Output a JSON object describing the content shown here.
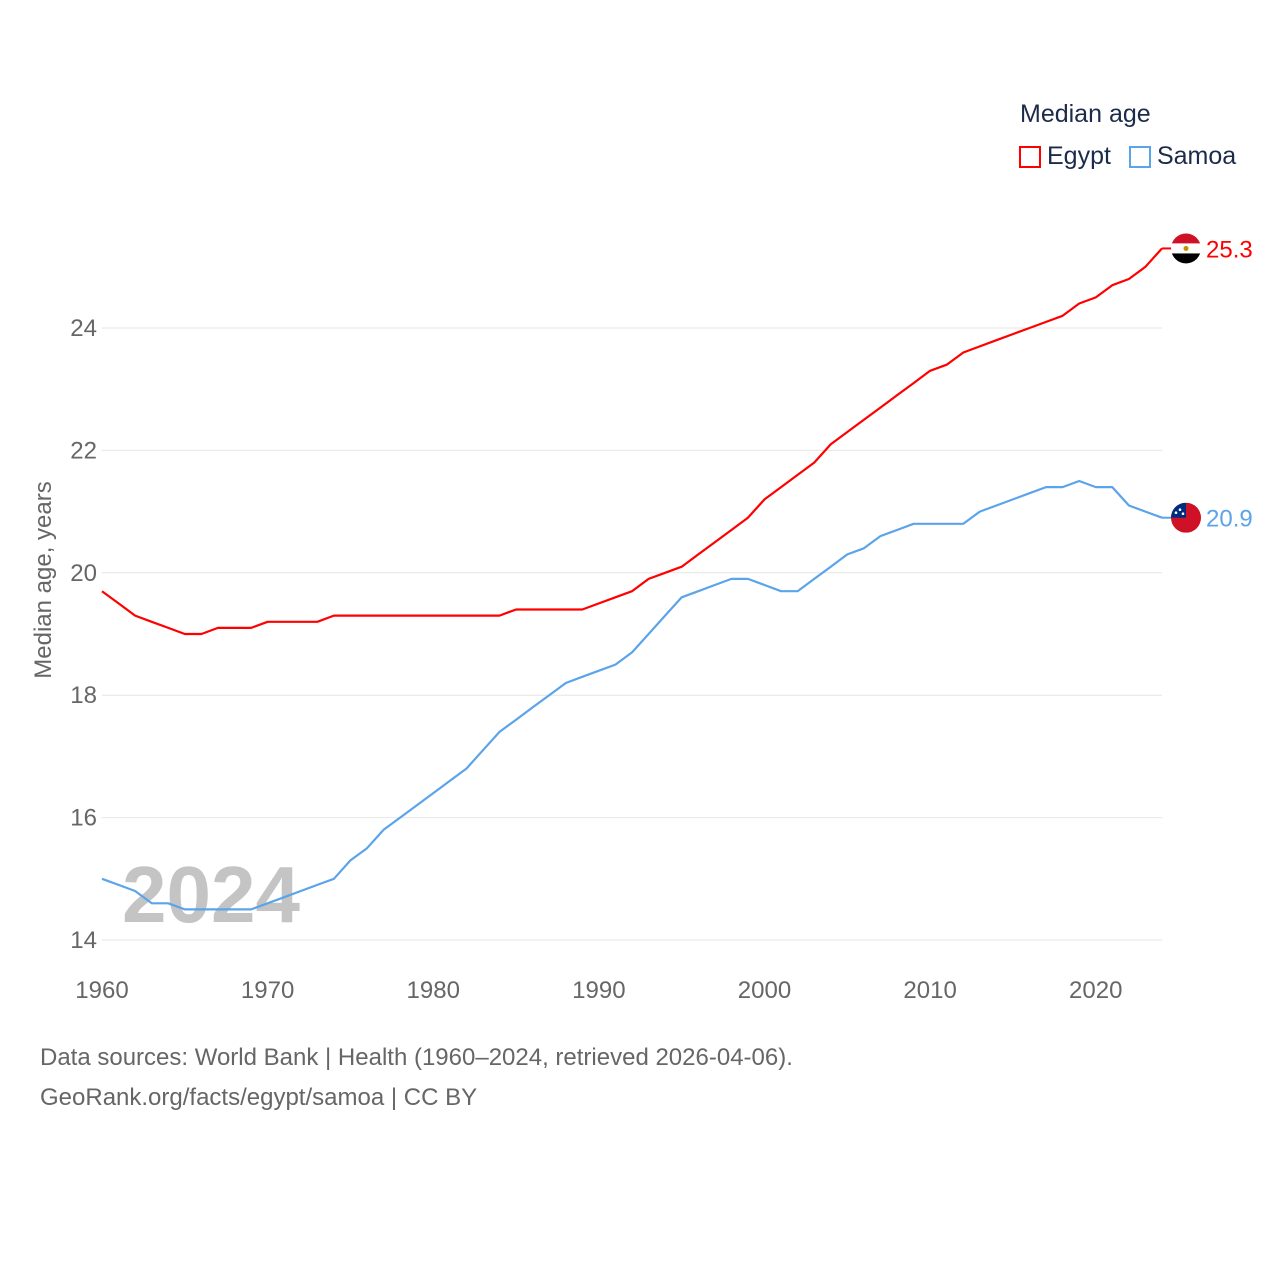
{
  "chart_data": {
    "type": "line",
    "title": "Median age",
    "xlabel": "",
    "ylabel": "Median age, years",
    "xlim": [
      1960,
      2024
    ],
    "ylim": [
      14,
      25.3
    ],
    "yticks": [
      14,
      16,
      18,
      20,
      22,
      24
    ],
    "xticks": [
      1960,
      1970,
      1980,
      1990,
      2000,
      2010,
      2020
    ],
    "grid": true,
    "legend_placement": "top-right",
    "watermark_year": "2024",
    "x": [
      1960,
      1961,
      1962,
      1963,
      1964,
      1965,
      1966,
      1967,
      1968,
      1969,
      1970,
      1971,
      1972,
      1973,
      1974,
      1975,
      1976,
      1977,
      1978,
      1979,
      1980,
      1981,
      1982,
      1983,
      1984,
      1985,
      1986,
      1987,
      1988,
      1989,
      1990,
      1991,
      1992,
      1993,
      1994,
      1995,
      1996,
      1997,
      1998,
      1999,
      2000,
      2001,
      2002,
      2003,
      2004,
      2005,
      2006,
      2007,
      2008,
      2009,
      2010,
      2011,
      2012,
      2013,
      2014,
      2015,
      2016,
      2017,
      2018,
      2019,
      2020,
      2021,
      2022,
      2023,
      2024
    ],
    "series": [
      {
        "name": "Egypt",
        "color": "#ff0000",
        "end_label": "25.3",
        "values": [
          19.7,
          19.5,
          19.3,
          19.2,
          19.1,
          19.0,
          19.0,
          19.1,
          19.1,
          19.1,
          19.2,
          19.2,
          19.2,
          19.2,
          19.3,
          19.3,
          19.3,
          19.3,
          19.3,
          19.3,
          19.3,
          19.3,
          19.3,
          19.3,
          19.3,
          19.4,
          19.4,
          19.4,
          19.4,
          19.4,
          19.5,
          19.6,
          19.7,
          19.9,
          20.0,
          20.1,
          20.3,
          20.5,
          20.7,
          20.9,
          21.2,
          21.4,
          21.6,
          21.8,
          22.1,
          22.3,
          22.5,
          22.7,
          22.9,
          23.1,
          23.3,
          23.4,
          23.6,
          23.7,
          23.8,
          23.9,
          24.0,
          24.1,
          24.2,
          24.4,
          24.5,
          24.7,
          24.8,
          25.0,
          25.3
        ]
      },
      {
        "name": "Samoa",
        "color": "#5ba4ea",
        "end_label": "20.9",
        "values": [
          15.0,
          14.9,
          14.8,
          14.6,
          14.6,
          14.5,
          14.5,
          14.5,
          14.5,
          14.5,
          14.6,
          14.7,
          14.8,
          14.9,
          15.0,
          15.3,
          15.5,
          15.8,
          16.0,
          16.2,
          16.4,
          16.6,
          16.8,
          17.1,
          17.4,
          17.6,
          17.8,
          18.0,
          18.2,
          18.3,
          18.4,
          18.5,
          18.7,
          19.0,
          19.3,
          19.6,
          19.7,
          19.8,
          19.9,
          19.9,
          19.8,
          19.7,
          19.7,
          19.9,
          20.1,
          20.3,
          20.4,
          20.6,
          20.7,
          20.8,
          20.8,
          20.8,
          20.8,
          21.0,
          21.1,
          21.2,
          21.3,
          21.4,
          21.4,
          21.5,
          21.4,
          21.4,
          21.1,
          21.0,
          20.9
        ]
      }
    ]
  },
  "legend": {
    "title": "Median age",
    "items": [
      "Egypt",
      "Samoa"
    ]
  },
  "footer": {
    "line1": "Data sources: World Bank | Health (1960–2024, retrieved 2026-04-06).",
    "line2": "GeoRank.org/facts/egypt/samoa | CC BY"
  }
}
